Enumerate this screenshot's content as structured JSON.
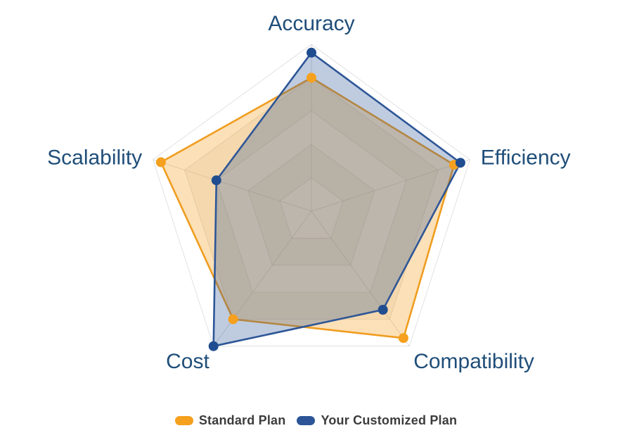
{
  "chart_data": {
    "type": "radar",
    "categories": [
      "Accuracy",
      "Efficiency",
      "Compatibility",
      "Cost",
      "Scalability"
    ],
    "series": [
      {
        "name": "Standard Plan",
        "values": [
          4.0,
          4.5,
          4.7,
          4.0,
          4.75
        ],
        "color": "#F5A01E",
        "line_color": "#EF9D20",
        "marker_color": "#F5A01E",
        "fill_opacity": 0.32
      },
      {
        "name": "Your Customized Plan",
        "values": [
          4.75,
          4.7,
          3.65,
          5.0,
          3.0
        ],
        "color": "#2B5597",
        "line_color": "#2E5697",
        "marker_color": "#204D90",
        "fill_opacity": 0.3
      }
    ],
    "scale": {
      "min": 0,
      "max": 5,
      "rings": 5
    },
    "grid": true,
    "legend_position": "bottom",
    "title": ""
  },
  "styles": {
    "axis_label_color": "#1F4E79",
    "legend_text_color": "#3C3C3C",
    "grid_line_color": "#BDBDBD",
    "band_shade_color": "#F5F3F0",
    "background": "#FFFFFF"
  }
}
